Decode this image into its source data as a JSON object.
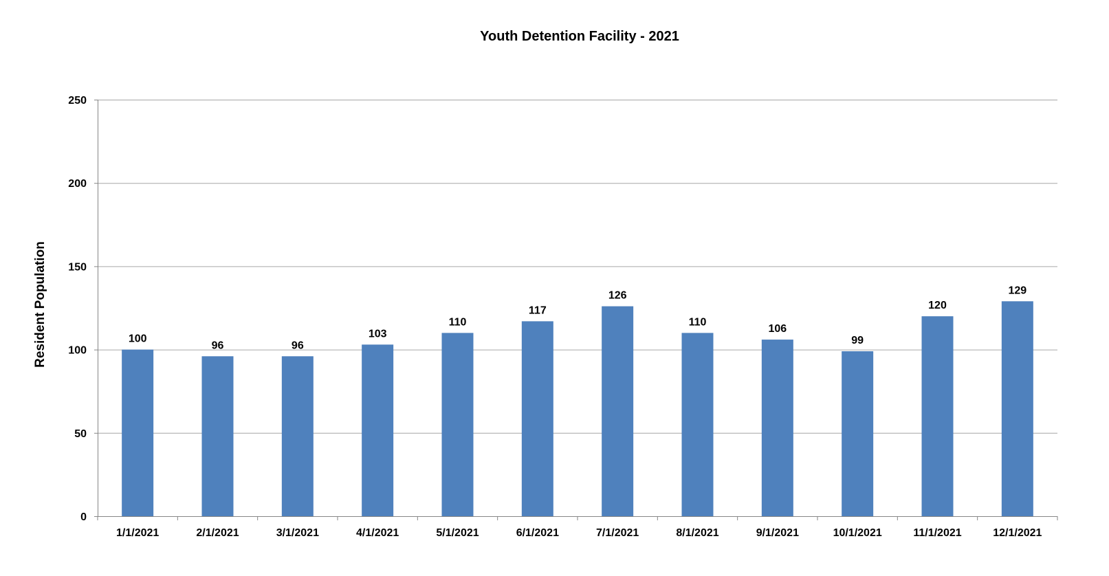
{
  "chart_data": {
    "type": "bar",
    "title": "Youth Detention Facility - 2021",
    "xlabel": "",
    "ylabel": "Resident Population",
    "ylim": [
      0,
      250
    ],
    "yticks": [
      0,
      50,
      100,
      150,
      200,
      250
    ],
    "grid": true,
    "legend": "none",
    "bar_color": "#4F81BD",
    "categories": [
      "1/1/2021",
      "2/1/2021",
      "3/1/2021",
      "4/1/2021",
      "5/1/2021",
      "6/1/2021",
      "7/1/2021",
      "8/1/2021",
      "9/1/2021",
      "10/1/2021",
      "11/1/2021",
      "12/1/2021"
    ],
    "values": [
      100,
      96,
      96,
      103,
      110,
      117,
      126,
      110,
      106,
      99,
      120,
      129
    ],
    "data_labels": true
  }
}
